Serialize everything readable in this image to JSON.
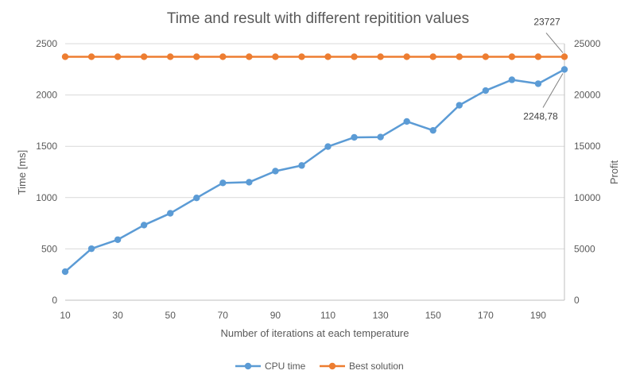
{
  "chart_data": {
    "type": "line",
    "title": "Time and result with different repitition values",
    "xlabel": "Number of iterations at each temperature",
    "ylabel": "Time [ms]",
    "y2label": "Profit",
    "x": [
      10,
      20,
      30,
      40,
      50,
      60,
      70,
      80,
      90,
      100,
      110,
      120,
      130,
      140,
      150,
      160,
      170,
      180,
      190,
      200
    ],
    "x_tick_labels": [
      "10",
      "30",
      "50",
      "70",
      "90",
      "110",
      "130",
      "150",
      "170",
      "190"
    ],
    "y_ticks": [
      "0",
      "500",
      "1000",
      "1500",
      "2000",
      "2500"
    ],
    "y2_ticks": [
      "0",
      "5000",
      "10000",
      "15000",
      "20000",
      "25000"
    ],
    "ylim": [
      0,
      2500
    ],
    "y2lim": [
      0,
      25000
    ],
    "grid": true,
    "legend_position": "bottom",
    "series": [
      {
        "name": "CPU time",
        "axis": "left",
        "color": "#5B9BD5",
        "values": [
          278,
          502,
          590,
          732,
          847,
          997,
          1143,
          1150,
          1258,
          1313,
          1497,
          1587,
          1590,
          1742,
          1655,
          1900,
          2043,
          2148,
          2110,
          2248.78
        ]
      },
      {
        "name": "Best solution",
        "axis": "right",
        "color": "#ED7D31",
        "values": [
          23727,
          23727,
          23727,
          23727,
          23727,
          23727,
          23727,
          23727,
          23727,
          23727,
          23727,
          23727,
          23727,
          23727,
          23727,
          23727,
          23727,
          23727,
          23727,
          23727
        ]
      }
    ],
    "annotations": [
      {
        "text": "23727",
        "series": 1,
        "point": 19
      },
      {
        "text": "2248,78",
        "series": 0,
        "point": 19
      }
    ]
  }
}
